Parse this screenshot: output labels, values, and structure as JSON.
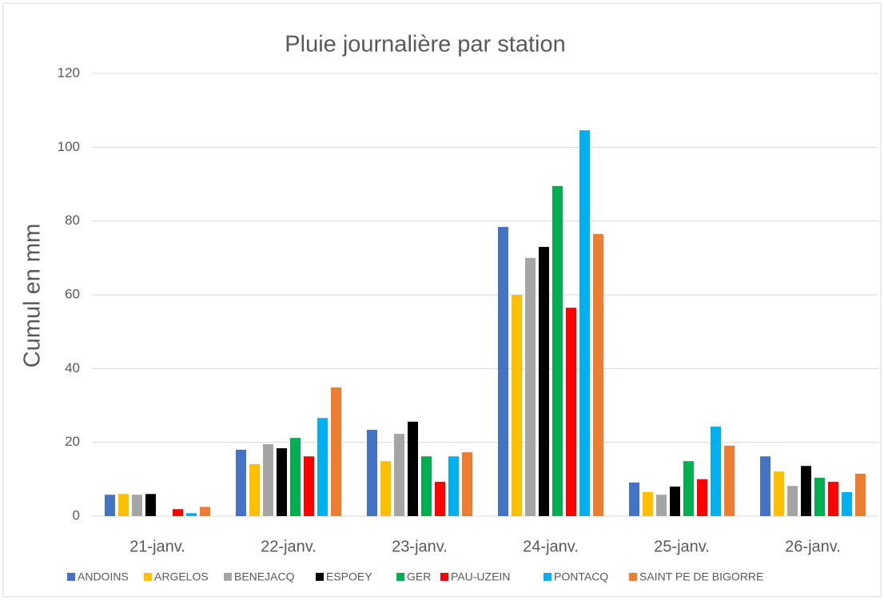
{
  "chart_data": {
    "type": "bar",
    "title": "Pluie journalière par station",
    "y_label": "Cumul en mm",
    "categories": [
      "21-janv.",
      "22-janv.",
      "23-janv.",
      "24-janv.",
      "25-janv.",
      "26-janv."
    ],
    "series": [
      {
        "name": "ANDOINS",
        "color": "#4472c4",
        "values": [
          5.8,
          18.0,
          23.4,
          78.4,
          9.1,
          16.2
        ]
      },
      {
        "name": "ARGELOS",
        "color": "#ffc000",
        "values": [
          6.0,
          14.1,
          14.9,
          60.0,
          6.5,
          12.1
        ]
      },
      {
        "name": "BENEJACQ",
        "color": "#a5a5a5",
        "values": [
          5.8,
          19.5,
          22.3,
          70.0,
          5.8,
          8.2
        ]
      },
      {
        "name": "ESPOEY",
        "color": "#000000",
        "values": [
          6.0,
          18.4,
          25.6,
          73.0,
          8.0,
          13.6
        ]
      },
      {
        "name": "GER",
        "color": "#00b050",
        "values": [
          0,
          21.2,
          16.2,
          89.5,
          14.9,
          10.4
        ]
      },
      {
        "name": "PAU-UZEIN",
        "color": "#ff0000",
        "values": [
          1.9,
          16.2,
          9.3,
          56.5,
          10.0,
          9.3
        ]
      },
      {
        "name": "PONTACQ",
        "color": "#00b0f0",
        "values": [
          0.8,
          26.6,
          16.2,
          104.6,
          24.3,
          6.5
        ]
      },
      {
        "name": "SAINT PE DE BIGORRE",
        "color": "#ed7d31",
        "values": [
          2.5,
          34.9,
          17.3,
          76.5,
          19.1,
          11.5
        ]
      }
    ],
    "ylim": [
      0,
      120
    ],
    "yticks": [
      0,
      20,
      40,
      60,
      80,
      100,
      120
    ],
    "grid": true,
    "legend": "bottom"
  }
}
